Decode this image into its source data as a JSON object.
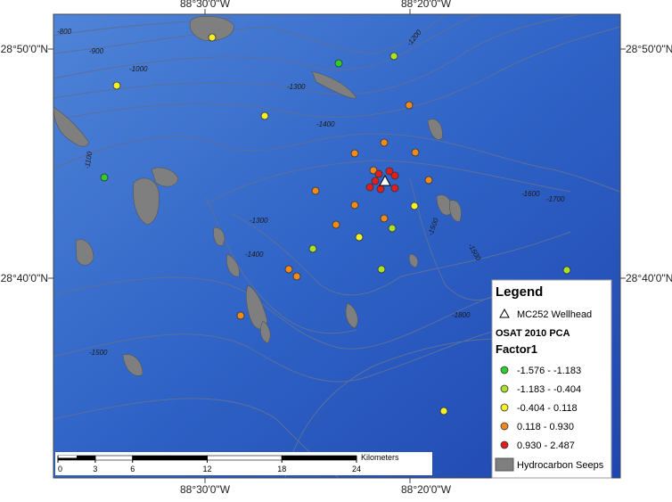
{
  "map": {
    "graticule": {
      "top": [
        "88°30'0\"W",
        "88°20'0\"W"
      ],
      "bottom": [
        "88°30'0\"W",
        "88°20'0\"W"
      ],
      "left": [
        "28°50'0\"N",
        "28°40'0\"N"
      ],
      "right": [
        "28°50'0\"N",
        "28°40'0\"N"
      ]
    },
    "contour_labels": [
      "-800",
      "-900",
      "-1000",
      "-1100",
      "-1200",
      "-1300",
      "-1400",
      "-1300",
      "-1400",
      "-1500",
      "-1600",
      "-1700",
      "-1500",
      "-1500",
      "-1800"
    ],
    "scale_bar": {
      "title": "Kilometers",
      "ticks": [
        0,
        3,
        6,
        12,
        18,
        24
      ]
    },
    "legend": {
      "title": "Legend",
      "wellhead": "MC252 Wellhead",
      "subtitle": "OSAT 2010 PCA",
      "field": "Factor1",
      "classes": [
        {
          "label": "-1.576 - -1.183",
          "color": "#2ecc2e"
        },
        {
          "label": "-1.183 - -0.404",
          "color": "#a8e02a"
        },
        {
          "label": "-0.404 - 0.118",
          "color": "#f5ee2a"
        },
        {
          "label": "0.118 - 0.930",
          "color": "#f08a1c"
        },
        {
          "label": "0.930 - 2.487",
          "color": "#e01e1e"
        }
      ],
      "seeps": "Hydrocarbon Seeps"
    }
  }
}
